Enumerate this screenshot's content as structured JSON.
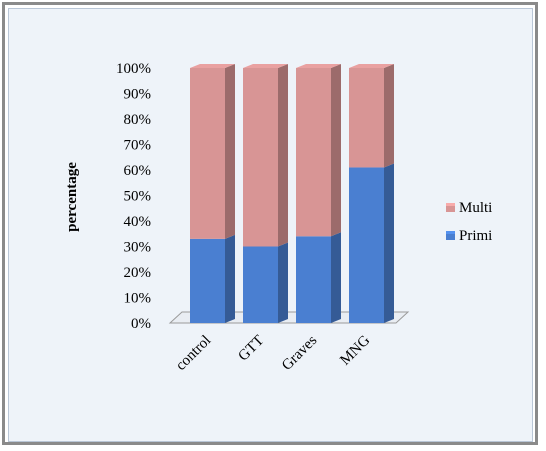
{
  "chart_data": {
    "type": "bar",
    "stacked": true,
    "percent_stacked": true,
    "categories": [
      "control",
      "GTT",
      "Graves",
      "MNG"
    ],
    "series": [
      {
        "name": "Primi",
        "values": [
          33,
          30,
          34,
          61
        ],
        "color": "#4a7fd1"
      },
      {
        "name": "Multi",
        "values": [
          67,
          70,
          66,
          39
        ],
        "color": "#d89595"
      }
    ],
    "y_ticks": [
      "0%",
      "10%",
      "20%",
      "30%",
      "40%",
      "50%",
      "60%",
      "70%",
      "80%",
      "90%",
      "100%"
    ],
    "ylabel": "percentage",
    "xlabel": "",
    "ylim": [
      0,
      100
    ],
    "legend_position": "right",
    "legend_order": [
      "Multi",
      "Primi"
    ],
    "grid": false
  }
}
